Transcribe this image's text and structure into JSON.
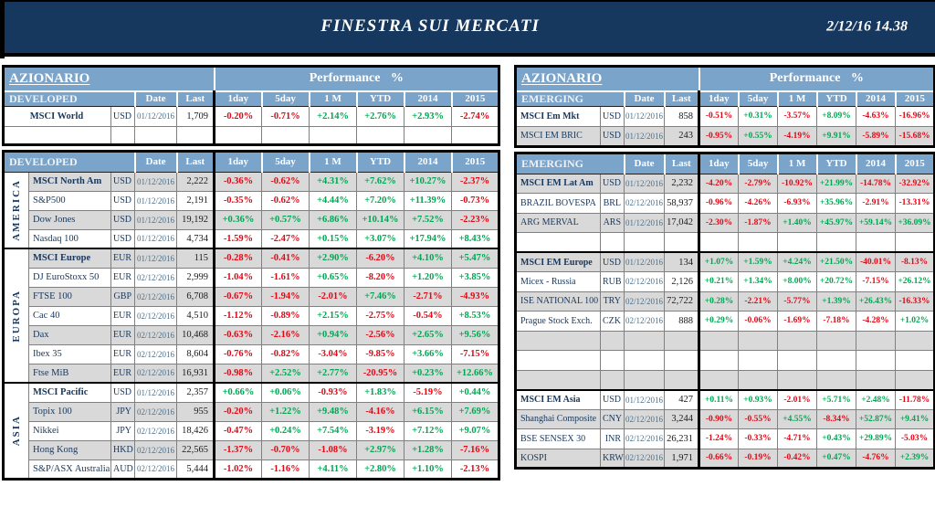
{
  "banner": {
    "title": "FINESTRA SUI MERCATI",
    "datetime": "2/12/16 14.38"
  },
  "perf_header": "Performance %",
  "columns": [
    "Date",
    "Last",
    "1day",
    "5day",
    "1 M",
    "YTD",
    "2014",
    "2015"
  ],
  "colors": {
    "positive": "#00A651",
    "negative": "#E30613",
    "header_blue": "#7AA4CA",
    "banner_navy": "#16375E",
    "row_gray": "#D9D9D9"
  },
  "left": {
    "section_title": "AZIONARIO",
    "block1": {
      "header": "DEVELOPED",
      "rows": [
        {
          "name": "MSCI World",
          "bold": true,
          "ccy": "USD",
          "date": "01/12/2016",
          "last": "1,709",
          "perf": [
            "-0.20%",
            "-0.71%",
            "+2.14%",
            "+2.76%",
            "+2.93%",
            "-2.74%"
          ]
        }
      ]
    },
    "block2": {
      "header": "DEVELOPED",
      "groups": [
        {
          "region": "AMERICA",
          "rows": [
            {
              "name": "MSCI North Am",
              "bold": true,
              "ccy": "USD",
              "date": "01/12/2016",
              "last": "2,222",
              "perf": [
                "-0.36%",
                "-0.62%",
                "+4.31%",
                "+7.62%",
                "+10.27%",
                "-2.37%"
              ]
            },
            {
              "name": "S&P500",
              "bold": false,
              "ccy": "USD",
              "date": "01/12/2016",
              "last": "2,191",
              "perf": [
                "-0.35%",
                "-0.62%",
                "+4.44%",
                "+7.20%",
                "+11.39%",
                "-0.73%"
              ]
            },
            {
              "name": "Dow Jones",
              "bold": false,
              "ccy": "USD",
              "date": "01/12/2016",
              "last": "19,192",
              "perf": [
                "+0.36%",
                "+0.57%",
                "+6.86%",
                "+10.14%",
                "+7.52%",
                "-2.23%"
              ]
            },
            {
              "name": "Nasdaq 100",
              "bold": false,
              "ccy": "USD",
              "date": "01/12/2016",
              "last": "4,734",
              "perf": [
                "-1.59%",
                "-2.47%",
                "+0.15%",
                "+3.07%",
                "+17.94%",
                "+8.43%"
              ]
            }
          ]
        },
        {
          "region": "EUROPA",
          "rows": [
            {
              "name": "MSCI Europe",
              "bold": true,
              "ccy": "EUR",
              "date": "01/12/2016",
              "last": "115",
              "perf": [
                "-0.28%",
                "-0.41%",
                "+2.90%",
                "-6.20%",
                "+4.10%",
                "+5.47%"
              ]
            },
            {
              "name": "DJ EuroStoxx 50",
              "bold": false,
              "ccy": "EUR",
              "date": "02/12/2016",
              "last": "2,999",
              "perf": [
                "-1.04%",
                "-1.61%",
                "+0.65%",
                "-8.20%",
                "+1.20%",
                "+3.85%"
              ]
            },
            {
              "name": "FTSE 100",
              "bold": false,
              "ccy": "GBP",
              "date": "02/12/2016",
              "last": "6,708",
              "perf": [
                "-0.67%",
                "-1.94%",
                "-2.01%",
                "+7.46%",
                "-2.71%",
                "-4.93%"
              ]
            },
            {
              "name": "Cac 40",
              "bold": false,
              "ccy": "EUR",
              "date": "02/12/2016",
              "last": "4,510",
              "perf": [
                "-1.12%",
                "-0.89%",
                "+2.15%",
                "-2.75%",
                "-0.54%",
                "+8.53%"
              ]
            },
            {
              "name": "Dax",
              "bold": false,
              "ccy": "EUR",
              "date": "02/12/2016",
              "last": "10,468",
              "perf": [
                "-0.63%",
                "-2.16%",
                "+0.94%",
                "-2.56%",
                "+2.65%",
                "+9.56%"
              ]
            },
            {
              "name": "Ibex 35",
              "bold": false,
              "ccy": "EUR",
              "date": "02/12/2016",
              "last": "8,604",
              "perf": [
                "-0.76%",
                "-0.82%",
                "-3.04%",
                "-9.85%",
                "+3.66%",
                "-7.15%"
              ]
            },
            {
              "name": "Ftse MiB",
              "bold": false,
              "ccy": "EUR",
              "date": "02/12/2016",
              "last": "16,931",
              "perf": [
                "-0.98%",
                "+2.52%",
                "+2.77%",
                "-20.95%",
                "+0.23%",
                "+12.66%"
              ]
            }
          ]
        },
        {
          "region": "ASIA",
          "rows": [
            {
              "name": "MSCI Pacific",
              "bold": true,
              "ccy": "USD",
              "date": "01/12/2016",
              "last": "2,357",
              "perf": [
                "+0.66%",
                "+0.06%",
                "-0.93%",
                "+1.83%",
                "-5.19%",
                "+0.44%"
              ]
            },
            {
              "name": "Topix 100",
              "bold": false,
              "ccy": "JPY",
              "date": "02/12/2016",
              "last": "955",
              "perf": [
                "-0.20%",
                "+1.22%",
                "+9.48%",
                "-4.16%",
                "+6.15%",
                "+7.69%"
              ]
            },
            {
              "name": "Nikkei",
              "bold": false,
              "ccy": "JPY",
              "date": "02/12/2016",
              "last": "18,426",
              "perf": [
                "-0.47%",
                "+0.24%",
                "+7.54%",
                "-3.19%",
                "+7.12%",
                "+9.07%"
              ]
            },
            {
              "name": "Hong Kong",
              "bold": false,
              "ccy": "HKD",
              "date": "02/12/2016",
              "last": "22,565",
              "perf": [
                "-1.37%",
                "-0.70%",
                "-1.08%",
                "+2.97%",
                "+1.28%",
                "-7.16%"
              ]
            },
            {
              "name": "S&P/ASX Australia",
              "bold": false,
              "ccy": "AUD",
              "date": "02/12/2016",
              "last": "5,444",
              "perf": [
                "-1.02%",
                "-1.16%",
                "+4.11%",
                "+2.80%",
                "+1.10%",
                "-2.13%"
              ]
            }
          ]
        }
      ]
    }
  },
  "right": {
    "section_title": "AZIONARIO",
    "block1": {
      "header": "EMERGING",
      "rows": [
        {
          "name": "MSCI Em Mkt",
          "bold": true,
          "ccy": "USD",
          "date": "01/12/2016",
          "last": "858",
          "perf": [
            "-0.51%",
            "+0.31%",
            "-3.57%",
            "+8.09%",
            "-4.63%",
            "-16.96%"
          ]
        },
        {
          "name": "MSCI EM BRIC",
          "bold": false,
          "ccy": "USD",
          "date": "01/12/2016",
          "last": "243",
          "perf": [
            "-0.95%",
            "+0.55%",
            "-4.19%",
            "+9.91%",
            "-5.89%",
            "-15.68%"
          ]
        }
      ]
    },
    "block2": {
      "header": "EMERGING",
      "groups": [
        {
          "rows": [
            {
              "name": "MSCI EM Lat Am",
              "bold": true,
              "ccy": "USD",
              "date": "01/12/2016",
              "last": "2,232",
              "perf": [
                "-4.20%",
                "-2.79%",
                "-10.92%",
                "+21.99%",
                "-14.78%",
                "-32.92%"
              ]
            },
            {
              "name": "BRAZIL BOVESPA",
              "bold": false,
              "ccy": "BRL",
              "date": "02/12/2016",
              "last": "58,937",
              "perf": [
                "-0.96%",
                "-4.26%",
                "-6.93%",
                "+35.96%",
                "-2.91%",
                "-13.31%"
              ]
            },
            {
              "name": "ARG MERVAL",
              "bold": false,
              "ccy": "ARS",
              "date": "01/12/2016",
              "last": "17,042",
              "perf": [
                "-2.30%",
                "-1.87%",
                "+1.40%",
                "+45.97%",
                "+59.14%",
                "+36.09%"
              ]
            }
          ],
          "spacers_after": 1
        },
        {
          "rows": [
            {
              "name": "MSCI EM Europe",
              "bold": true,
              "ccy": "USD",
              "date": "01/12/2016",
              "last": "134",
              "perf": [
                "+1.07%",
                "+1.59%",
                "+4.24%",
                "+21.50%",
                "-40.01%",
                "-8.13%"
              ]
            },
            {
              "name": "Micex - Russia",
              "bold": false,
              "ccy": "RUB",
              "date": "02/12/2016",
              "last": "2,126",
              "perf": [
                "+0.21%",
                "+1.34%",
                "+8.00%",
                "+20.72%",
                "-7.15%",
                "+26.12%"
              ]
            },
            {
              "name": "ISE NATIONAL 100",
              "bold": false,
              "ccy": "TRY",
              "date": "02/12/2016",
              "last": "72,722",
              "perf": [
                "+0.28%",
                "-2.21%",
                "-5.77%",
                "+1.39%",
                "+26.43%",
                "-16.33%"
              ]
            },
            {
              "name": "Prague Stock Exch.",
              "bold": false,
              "ccy": "CZK",
              "date": "02/12/2016",
              "last": "888",
              "perf": [
                "+0.29%",
                "-0.06%",
                "-1.69%",
                "-7.18%",
                "-4.28%",
                "+1.02%"
              ]
            }
          ],
          "spacers_after": 3
        },
        {
          "rows": [
            {
              "name": "MSCI EM Asia",
              "bold": true,
              "ccy": "USD",
              "date": "01/12/2016",
              "last": "427",
              "perf": [
                "+0.11%",
                "+0.93%",
                "-2.01%",
                "+5.71%",
                "+2.48%",
                "-11.78%"
              ]
            },
            {
              "name": "Shanghai Composite",
              "bold": false,
              "ccy": "CNY",
              "date": "02/12/2016",
              "last": "3,244",
              "perf": [
                "-0.90%",
                "-0.55%",
                "+4.55%",
                "-8.34%",
                "+52.87%",
                "+9.41%"
              ]
            },
            {
              "name": "BSE SENSEX 30",
              "bold": false,
              "ccy": "INR",
              "date": "02/12/2016",
              "last": "26,231",
              "perf": [
                "-1.24%",
                "-0.33%",
                "-4.71%",
                "+0.43%",
                "+29.89%",
                "-5.03%"
              ]
            },
            {
              "name": "KOSPI",
              "bold": false,
              "ccy": "KRW",
              "date": "02/12/2016",
              "last": "1,971",
              "perf": [
                "-0.66%",
                "-0.19%",
                "-0.42%",
                "+0.47%",
                "-4.76%",
                "+2.39%"
              ]
            }
          ],
          "spacers_after": 0
        }
      ]
    }
  }
}
